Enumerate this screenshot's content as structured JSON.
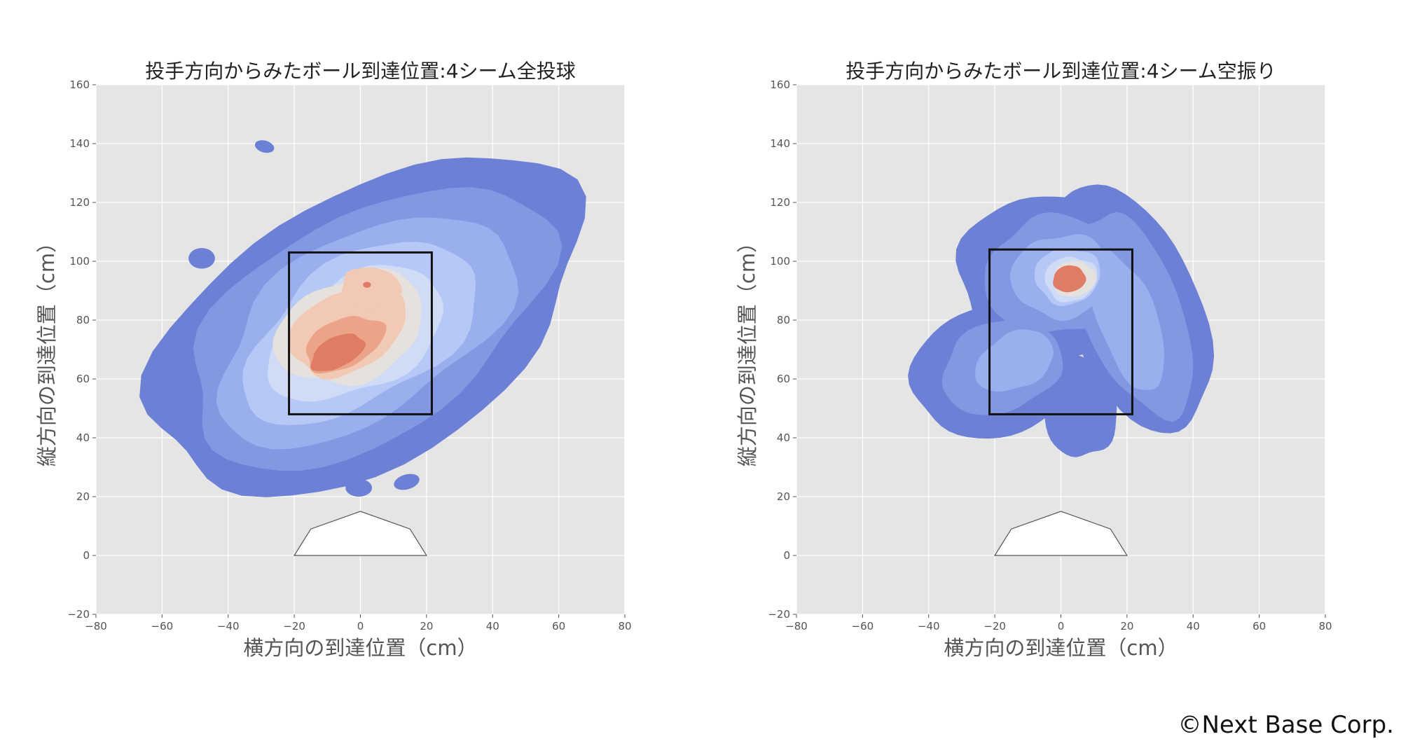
{
  "chart_data": [
    {
      "type": "heatmap",
      "subtype": "kde-contour",
      "title": "投手方向からみたボール到達位置:4シーム全投球",
      "xlabel": "横方向の到達位置（cm）",
      "ylabel": "縦方向の到達位置（cm）",
      "xlim": [
        -80,
        80
      ],
      "ylim": [
        -20,
        160
      ],
      "xticks": [
        -80,
        -60,
        -40,
        -20,
        0,
        20,
        40,
        60,
        80
      ],
      "yticks": [
        -20,
        0,
        20,
        40,
        60,
        80,
        100,
        120,
        140,
        160
      ],
      "grid": true,
      "strike_zone": {
        "x": [
          -21.6,
          21.6
        ],
        "y": [
          48,
          103
        ]
      },
      "home_plate": [
        [
          -20,
          0
        ],
        [
          -15,
          9
        ],
        [
          0,
          15
        ],
        [
          15,
          9
        ],
        [
          20,
          0
        ]
      ],
      "density_peaks": [
        {
          "x": -8,
          "y": 68,
          "level": "highest"
        },
        {
          "x": 2,
          "y": 92,
          "level": "high"
        }
      ],
      "contour_extent": {
        "x": [
          -62,
          73
        ],
        "y": [
          10,
          145
        ]
      }
    },
    {
      "type": "heatmap",
      "subtype": "kde-contour",
      "title": "投手方向からみたボール到達位置:4シーム空振り",
      "xlabel": "横方向の到達位置（cm）",
      "ylabel": "縦方向の到達位置（cm）",
      "xlim": [
        -80,
        80
      ],
      "ylim": [
        -20,
        160
      ],
      "xticks": [
        -80,
        -60,
        -40,
        -20,
        0,
        20,
        40,
        60,
        80
      ],
      "yticks": [
        -20,
        0,
        20,
        40,
        60,
        80,
        100,
        120,
        140,
        160
      ],
      "grid": true,
      "strike_zone": {
        "x": [
          -21.6,
          21.6
        ],
        "y": [
          48,
          104
        ]
      },
      "home_plate": [
        [
          -20,
          0
        ],
        [
          -15,
          9
        ],
        [
          0,
          15
        ],
        [
          15,
          9
        ],
        [
          20,
          0
        ]
      ],
      "density_peaks": [
        {
          "x": 3,
          "y": 94,
          "level": "highest"
        }
      ],
      "contour_extent": {
        "x": [
          -44,
          43
        ],
        "y": [
          33,
          131
        ]
      }
    }
  ],
  "colors": {
    "background": "#e5e5e5",
    "grid": "#ffffff",
    "levels": [
      "#6c81d6",
      "#8199e3",
      "#9ab0ee",
      "#b6c8f5",
      "#d0dcf5",
      "#e6e1dd",
      "#f2c9b4",
      "#eba488",
      "#e07b65"
    ]
  },
  "copyright": "©Next Base Corp."
}
